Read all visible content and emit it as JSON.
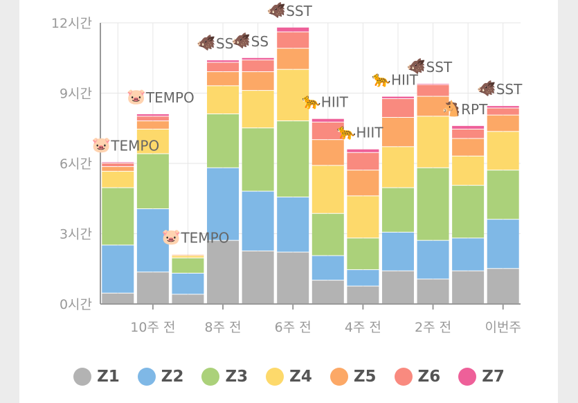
{
  "chart_data": {
    "type": "bar",
    "stacked": true,
    "ylim": [
      0,
      12
    ],
    "ytick_values": [
      0,
      3,
      6,
      9,
      12
    ],
    "ytick_labels": [
      "0시간",
      "3시간",
      "6시간",
      "9시간",
      "12시간"
    ],
    "categories": [
      "",
      "10주 전",
      "",
      "8주 전",
      "",
      "6주 전",
      "",
      "4주 전",
      "",
      "2주 전",
      "",
      "이번주"
    ],
    "grid": true,
    "legend": "bottom",
    "series": [
      {
        "name": "Z1",
        "color": "#b3b3b3",
        "values": [
          0.45,
          1.35,
          0.4,
          2.7,
          2.25,
          2.2,
          1.0,
          0.75,
          1.4,
          1.05,
          1.4,
          1.5
        ]
      },
      {
        "name": "Z2",
        "color": "#7fb8e6",
        "values": [
          2.05,
          2.7,
          0.9,
          3.1,
          2.55,
          2.35,
          1.05,
          0.7,
          1.65,
          1.65,
          1.4,
          2.1
        ]
      },
      {
        "name": "Z3",
        "color": "#abd17a",
        "values": [
          2.45,
          2.35,
          0.65,
          2.3,
          2.7,
          3.25,
          1.8,
          1.35,
          1.9,
          3.1,
          2.25,
          2.1
        ]
      },
      {
        "name": "Z4",
        "color": "#fdd96b",
        "values": [
          0.7,
          1.05,
          0.1,
          1.2,
          1.6,
          2.2,
          2.05,
          1.8,
          1.75,
          2.2,
          1.25,
          1.65
        ]
      },
      {
        "name": "Z5",
        "color": "#fca866",
        "values": [
          0.2,
          0.35,
          0.05,
          0.6,
          0.8,
          0.9,
          1.1,
          1.1,
          1.25,
          0.85,
          0.75,
          0.7
        ]
      },
      {
        "name": "Z6",
        "color": "#f98a7f",
        "values": [
          0.15,
          0.2,
          0.0,
          0.4,
          0.5,
          0.7,
          0.75,
          0.75,
          0.8,
          0.5,
          0.4,
          0.3
        ]
      },
      {
        "name": "Z7",
        "color": "#ee6099",
        "values": [
          0.05,
          0.1,
          0.02,
          0.1,
          0.1,
          0.2,
          0.15,
          0.15,
          0.1,
          0.05,
          0.15,
          0.1
        ]
      }
    ],
    "annotations": [
      {
        "bar": 0,
        "label": "TEMPO",
        "icon": "pig-face-icon"
      },
      {
        "bar": 1,
        "label": "TEMPO",
        "icon": "pig-face-icon"
      },
      {
        "bar": 2,
        "label": "TEMPO",
        "icon": "pig-face-icon"
      },
      {
        "bar": 3,
        "label": "SS",
        "icon": "boar-icon"
      },
      {
        "bar": 4,
        "label": "SS",
        "icon": "boar-icon"
      },
      {
        "bar": 5,
        "label": "SST",
        "icon": "boar-icon"
      },
      {
        "bar": 6,
        "label": "HIIT",
        "icon": "leopard-icon"
      },
      {
        "bar": 7,
        "label": "HIIT",
        "icon": "leopard-icon"
      },
      {
        "bar": 8,
        "label": "HIIT",
        "icon": "leopard-icon"
      },
      {
        "bar": 9,
        "label": "SST",
        "icon": "boar-icon"
      },
      {
        "bar": 10,
        "label": "RPT",
        "icon": "horse-face-icon"
      },
      {
        "bar": 11,
        "label": "SST",
        "icon": "boar-icon"
      }
    ]
  },
  "icons": {
    "pig-face-icon": "🐷",
    "boar-icon": "🐗",
    "leopard-icon": "🐆",
    "horse-face-icon": "🐴"
  },
  "colors": {
    "axis": "#999999",
    "grid": "#e6e6e6",
    "annotation_text": "#666666"
  }
}
